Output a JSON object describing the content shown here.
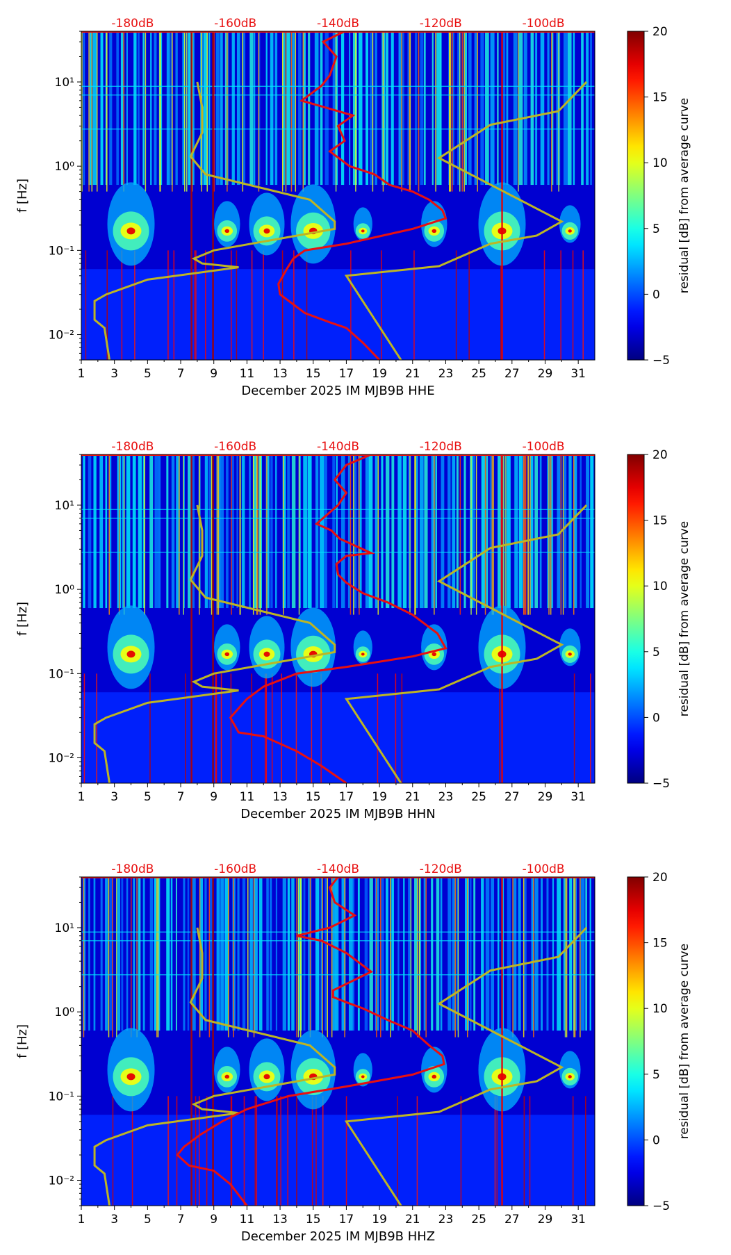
{
  "chart_data": {
    "type": "heatmap",
    "panels": [
      {
        "xlabel": "December 2025 IM MJB9B  HHE",
        "ylabel": "f [Hz]",
        "colorbar_label": "residual [dB] from average curve",
        "red_curve": [
          [
            16.9,
            40
          ],
          [
            15.6,
            30
          ],
          [
            16.4,
            20
          ],
          [
            16.0,
            12
          ],
          [
            15.5,
            9
          ],
          [
            14.3,
            6
          ],
          [
            15.7,
            5
          ],
          [
            17.4,
            4
          ],
          [
            16.5,
            3
          ],
          [
            16.9,
            2
          ],
          [
            16.0,
            1.5
          ],
          [
            17.2,
            1
          ],
          [
            18.7,
            0.8
          ],
          [
            19.6,
            0.6
          ],
          [
            21.0,
            0.5
          ],
          [
            22.0,
            0.4
          ],
          [
            22.8,
            0.3
          ],
          [
            23.0,
            0.24
          ],
          [
            21.0,
            0.18
          ],
          [
            17.0,
            0.12
          ],
          [
            14.5,
            0.1
          ],
          [
            13.8,
            0.08
          ],
          [
            13.4,
            0.06
          ],
          [
            12.9,
            0.04
          ],
          [
            13.0,
            0.03
          ],
          [
            14.5,
            0.018
          ],
          [
            16.0,
            0.014
          ],
          [
            17.0,
            0.012
          ],
          [
            18.0,
            0.008
          ],
          [
            19.0,
            0.005
          ]
        ]
      },
      {
        "xlabel": "December 2025 IM MJB9B  HHN",
        "ylabel": "f [Hz]",
        "colorbar_label": "residual [dB] from average curve",
        "red_curve": [
          [
            18.5,
            40
          ],
          [
            17.0,
            30
          ],
          [
            16.3,
            20
          ],
          [
            17.0,
            14
          ],
          [
            16.5,
            10
          ],
          [
            15.2,
            6
          ],
          [
            16.1,
            5
          ],
          [
            16.6,
            4
          ],
          [
            18.5,
            2.7
          ],
          [
            17.0,
            2.5
          ],
          [
            16.4,
            2
          ],
          [
            16.5,
            1.5
          ],
          [
            17.0,
            1.2
          ],
          [
            18.0,
            0.9
          ],
          [
            19.5,
            0.7
          ],
          [
            21.0,
            0.5
          ],
          [
            22.5,
            0.3
          ],
          [
            23.0,
            0.2
          ],
          [
            21.0,
            0.16
          ],
          [
            17.0,
            0.12
          ],
          [
            14.0,
            0.1
          ],
          [
            12.0,
            0.07
          ],
          [
            11.0,
            0.05
          ],
          [
            10.3,
            0.035
          ],
          [
            10.0,
            0.03
          ],
          [
            10.5,
            0.02
          ],
          [
            12.0,
            0.018
          ],
          [
            14.0,
            0.012
          ],
          [
            15.5,
            0.008
          ],
          [
            17.0,
            0.005
          ]
        ]
      },
      {
        "xlabel": "December 2025 IM MJB9B  HHZ",
        "ylabel": "f [Hz]",
        "colorbar_label": "residual [dB] from average curve",
        "red_curve": [
          [
            16.5,
            40
          ],
          [
            16.0,
            30
          ],
          [
            16.3,
            20
          ],
          [
            17.5,
            14
          ],
          [
            16.0,
            10
          ],
          [
            14.0,
            8
          ],
          [
            15.5,
            7
          ],
          [
            17.0,
            5
          ],
          [
            18.5,
            3
          ],
          [
            16.2,
            1.8
          ],
          [
            16.2,
            1.5
          ],
          [
            17.0,
            1.3
          ],
          [
            18.0,
            1.1
          ],
          [
            19.5,
            0.8
          ],
          [
            21.0,
            0.6
          ],
          [
            22.0,
            0.4
          ],
          [
            22.8,
            0.3
          ],
          [
            22.9,
            0.24
          ],
          [
            21.0,
            0.18
          ],
          [
            17.0,
            0.13
          ],
          [
            13.5,
            0.1
          ],
          [
            11.0,
            0.07
          ],
          [
            9.5,
            0.05
          ],
          [
            8.2,
            0.035
          ],
          [
            7.2,
            0.025
          ],
          [
            6.8,
            0.02
          ],
          [
            7.5,
            0.015
          ],
          [
            9.0,
            0.013
          ],
          [
            10.0,
            0.009
          ],
          [
            11.0,
            0.005
          ]
        ]
      }
    ],
    "x_ticks": [
      "1",
      "3",
      "5",
      "7",
      "9",
      "11",
      "13",
      "15",
      "17",
      "19",
      "21",
      "23",
      "25",
      "27",
      "29",
      "31"
    ],
    "x_range": [
      1,
      32
    ],
    "y_ticks": [
      "10⁻²",
      "10⁻¹",
      "10⁰",
      "10¹"
    ],
    "y_range_hz": [
      0.005,
      40
    ],
    "top_axis_labels": [
      "-180dB",
      "-160dB",
      "-140dB",
      "-120dB",
      "-100dB"
    ],
    "top_axis_range_db": [
      -190,
      -90
    ],
    "colorbar_ticks": [
      "20",
      "15",
      "10",
      "5",
      "0",
      "−5"
    ],
    "colorbar_range": [
      -5,
      20
    ],
    "noise_model_curve": [
      [
        8.0,
        10
      ],
      [
        8.3,
        5
      ],
      [
        8.3,
        2.5
      ],
      [
        7.6,
        1.3
      ],
      [
        8.5,
        0.8
      ],
      [
        14.8,
        0.4
      ],
      [
        16.3,
        0.22
      ],
      [
        16.3,
        0.18
      ],
      [
        9.0,
        0.1
      ],
      [
        7.8,
        0.08
      ],
      [
        8.3,
        0.07
      ],
      [
        10.5,
        0.063
      ],
      [
        5.0,
        0.045
      ],
      [
        2.5,
        0.03
      ],
      [
        1.8,
        0.025
      ],
      [
        1.8,
        0.015
      ],
      [
        2.4,
        0.012
      ],
      [
        2.7,
        0.005
      ]
    ],
    "noise_model_curve_upper": [
      [
        31.5,
        10
      ],
      [
        29.8,
        4.5
      ],
      [
        25.7,
        3.1
      ],
      [
        22.6,
        1.25
      ],
      [
        30.0,
        0.22
      ],
      [
        28.5,
        0.15
      ],
      [
        25.7,
        0.12
      ],
      [
        22.6,
        0.065
      ],
      [
        17.0,
        0.05
      ],
      [
        20.3,
        0.005
      ]
    ]
  }
}
